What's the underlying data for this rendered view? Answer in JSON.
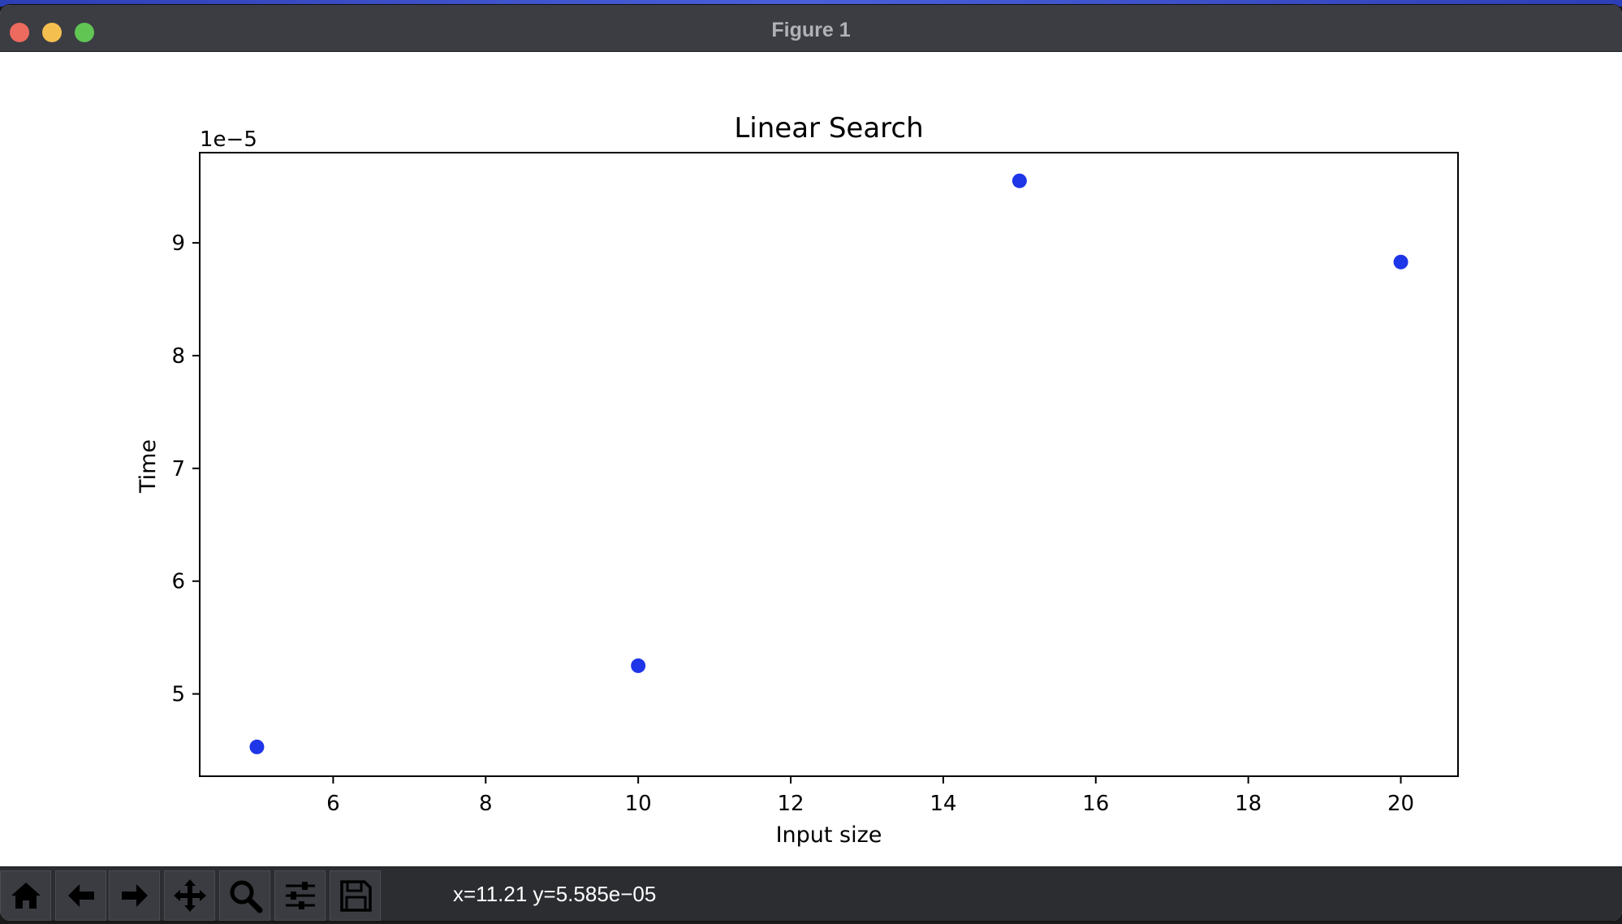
{
  "window": {
    "title": "Figure 1"
  },
  "toolbar": {
    "buttons": [
      {
        "icon": "home-icon"
      },
      {
        "icon": "back-arrow-icon"
      },
      {
        "icon": "forward-arrow-icon"
      },
      {
        "icon": "pan-move-icon"
      },
      {
        "icon": "zoom-magnifier-icon"
      },
      {
        "icon": "configure-subplots-icon"
      },
      {
        "icon": "save-floppy-icon"
      }
    ],
    "coordinates": "x=11.21 y=5.585e−05"
  },
  "chart_data": {
    "type": "scatter",
    "title": "Linear Search",
    "xlabel": "Input size",
    "ylabel": "Time",
    "y_offset_text": "1e−5",
    "x": [
      5,
      10,
      15,
      20
    ],
    "y": [
      4.53e-05,
      5.25e-05,
      9.55e-05,
      8.83e-05
    ],
    "xlim": [
      4.25,
      20.75
    ],
    "ylim": [
      4.27e-05,
      9.8e-05
    ],
    "xticks": [
      6,
      8,
      10,
      12,
      14,
      16,
      18,
      20
    ],
    "yticks": [
      5,
      6,
      7,
      8,
      9
    ],
    "ytick_scale": 1e-05,
    "marker_color": "#1f35e8",
    "grid": false,
    "legend": "none"
  }
}
